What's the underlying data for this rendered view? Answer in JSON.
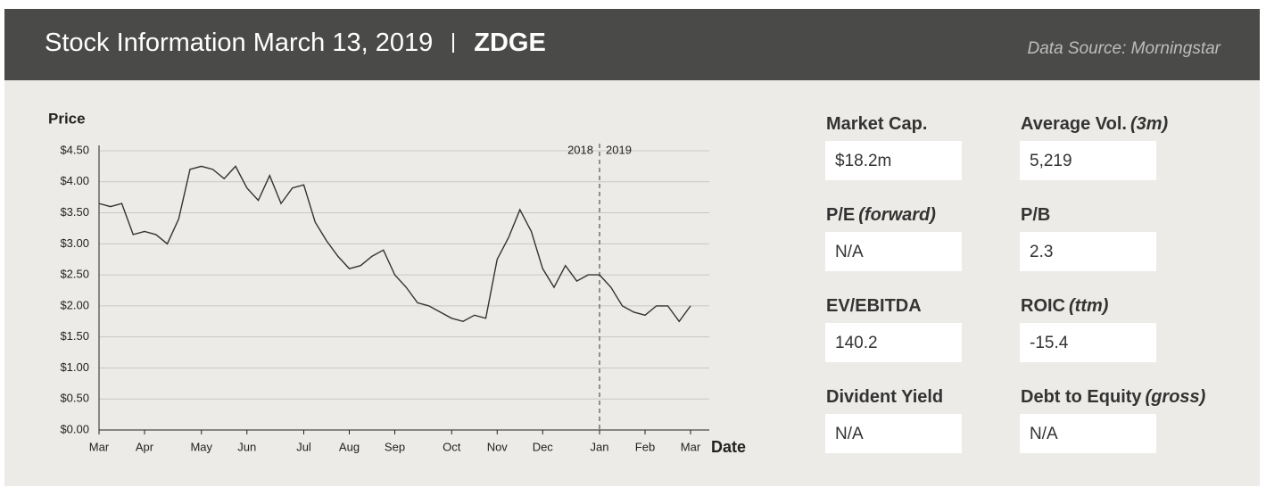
{
  "header": {
    "title": "Stock Information March 13, 2019",
    "ticker": "ZDGE",
    "source": "Data Source: Morningstar"
  },
  "chart_data": {
    "type": "line",
    "y_label": "Price",
    "x_label": "Date",
    "color": "#333333",
    "grid": true,
    "annotations": [
      "2018",
      "2019"
    ],
    "categories": [
      "Mar",
      null,
      null,
      null,
      "Apr",
      null,
      null,
      null,
      null,
      "May",
      null,
      null,
      null,
      "Jun",
      null,
      null,
      null,
      null,
      "Jul",
      null,
      null,
      null,
      "Aug",
      null,
      null,
      null,
      "Sep",
      null,
      null,
      null,
      null,
      "Oct",
      null,
      null,
      null,
      "Nov",
      null,
      null,
      null,
      "Dec",
      null,
      null,
      null,
      null,
      "Jan",
      null,
      null,
      null,
      "Feb",
      null,
      null,
      null,
      "Mar"
    ],
    "values": [
      3.65,
      3.6,
      3.65,
      3.15,
      3.2,
      3.15,
      3.0,
      3.4,
      4.2,
      4.25,
      4.2,
      4.05,
      4.25,
      3.9,
      3.7,
      4.1,
      3.65,
      3.9,
      3.95,
      3.35,
      3.05,
      2.8,
      2.6,
      2.65,
      2.8,
      2.9,
      2.5,
      2.3,
      2.05,
      2.0,
      1.9,
      1.8,
      1.75,
      1.85,
      1.8,
      2.75,
      3.1,
      3.55,
      3.2,
      2.6,
      2.3,
      2.65,
      2.4,
      2.5,
      2.5,
      2.3,
      2.0,
      1.9,
      1.85,
      2.0,
      2.0,
      1.75,
      2.0
    ],
    "ylim": [
      0,
      4.5
    ],
    "yticks": [
      {
        "value": 0,
        "label": "$0.00"
      },
      {
        "value": 0.5,
        "label": "$0.50"
      },
      {
        "value": 1,
        "label": "$1.00"
      },
      {
        "value": 1.5,
        "label": "$1.50"
      },
      {
        "value": 2,
        "label": "$2.00"
      },
      {
        "value": 2.5,
        "label": "$2.50"
      },
      {
        "value": 3,
        "label": "$3.00"
      },
      {
        "value": 3.5,
        "label": "$3.50"
      },
      {
        "value": 4,
        "label": "$4.00"
      },
      {
        "value": 4.5,
        "label": "$4.50"
      }
    ]
  },
  "metrics": [
    {
      "label": "Market Cap.",
      "value": "$18.2m"
    },
    {
      "label": "Average Vol.",
      "qualifier": "(3m)",
      "value": "5,219"
    },
    {
      "label": "P/E",
      "qualifier": "(forward)",
      "value": "N/A"
    },
    {
      "label": "P/B",
      "value": "2.3"
    },
    {
      "label": "EV/EBITDA",
      "value": "140.2"
    },
    {
      "label": "ROIC",
      "qualifier": "(ttm)",
      "value": "-15.4"
    },
    {
      "label": "Divident Yield",
      "value": "N/A"
    },
    {
      "label": "Debt to Equity",
      "qualifier": "(gross)",
      "value": "N/A"
    }
  ]
}
